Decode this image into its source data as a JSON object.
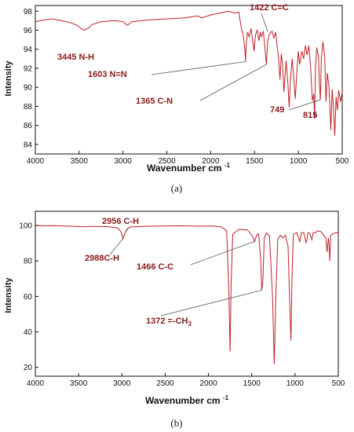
{
  "chart_data": [
    {
      "type": "line",
      "panel": "(a)",
      "xlabel": "Wavenumber cm⁻¹",
      "ylabel": "Intensity",
      "xlim": [
        4000,
        500
      ],
      "ylim": [
        83,
        98.6
      ],
      "xticks": [
        4000,
        3500,
        3000,
        2500,
        2000,
        1500,
        1000,
        500
      ],
      "yticks": [
        84,
        86,
        88,
        90,
        92,
        94,
        96,
        98
      ],
      "color": "#c0202a",
      "points": [
        [
          4000,
          96.9
        ],
        [
          3900,
          97.1
        ],
        [
          3800,
          97.2
        ],
        [
          3700,
          97.0
        ],
        [
          3600,
          96.8
        ],
        [
          3520,
          96.5
        ],
        [
          3480,
          96.2
        ],
        [
          3445,
          96.0
        ],
        [
          3400,
          96.2
        ],
        [
          3350,
          96.6
        ],
        [
          3250,
          96.9
        ],
        [
          3100,
          97.0
        ],
        [
          3000,
          96.9
        ],
        [
          2950,
          96.5
        ],
        [
          2900,
          96.9
        ],
        [
          2700,
          97.1
        ],
        [
          2500,
          97.2
        ],
        [
          2300,
          97.3
        ],
        [
          2150,
          97.5
        ],
        [
          2100,
          97.3
        ],
        [
          2000,
          97.6
        ],
        [
          1900,
          97.8
        ],
        [
          1800,
          98.0
        ],
        [
          1720,
          97.8
        ],
        [
          1680,
          97.9
        ],
        [
          1650,
          96.2
        ],
        [
          1630,
          95.5
        ],
        [
          1610,
          94.0
        ],
        [
          1603,
          92.7
        ],
        [
          1596,
          94.5
        ],
        [
          1580,
          95.8
        ],
        [
          1560,
          95.3
        ],
        [
          1540,
          96.2
        ],
        [
          1520,
          94.8
        ],
        [
          1505,
          93.8
        ],
        [
          1490,
          95.5
        ],
        [
          1470,
          96.0
        ],
        [
          1450,
          94.9
        ],
        [
          1435,
          95.8
        ],
        [
          1422,
          95.3
        ],
        [
          1400,
          95.9
        ],
        [
          1385,
          94.5
        ],
        [
          1365,
          92.4
        ],
        [
          1350,
          94.8
        ],
        [
          1330,
          95.6
        ],
        [
          1300,
          95.9
        ],
        [
          1280,
          95.2
        ],
        [
          1260,
          95.8
        ],
        [
          1240,
          94.2
        ],
        [
          1225,
          93.0
        ],
        [
          1210,
          90.8
        ],
        [
          1195,
          93.5
        ],
        [
          1180,
          92.5
        ],
        [
          1165,
          89.5
        ],
        [
          1150,
          91.5
        ],
        [
          1140,
          92.8
        ],
        [
          1120,
          90.5
        ],
        [
          1105,
          87.9
        ],
        [
          1090,
          91.0
        ],
        [
          1070,
          93.0
        ],
        [
          1050,
          90.5
        ],
        [
          1035,
          88.8
        ],
        [
          1015,
          92.0
        ],
        [
          1000,
          93.8
        ],
        [
          985,
          92.4
        ],
        [
          960,
          93.8
        ],
        [
          940,
          93.0
        ],
        [
          920,
          94.4
        ],
        [
          900,
          93.4
        ],
        [
          880,
          94.4
        ],
        [
          860,
          92.0
        ],
        [
          840,
          88.6
        ],
        [
          825,
          89.3
        ],
        [
          815,
          86.7
        ],
        [
          805,
          92.0
        ],
        [
          790,
          94.2
        ],
        [
          770,
          93.2
        ],
        [
          760,
          90.2
        ],
        [
          749,
          88.7
        ],
        [
          738,
          93.0
        ],
        [
          720,
          94.8
        ],
        [
          700,
          93.2
        ],
        [
          685,
          88.5
        ],
        [
          670,
          91.5
        ],
        [
          650,
          90.0
        ],
        [
          630,
          85.5
        ],
        [
          615,
          89.8
        ],
        [
          600,
          88.0
        ],
        [
          585,
          84.9
        ],
        [
          570,
          89.0
        ],
        [
          555,
          87.6
        ],
        [
          540,
          89.7
        ],
        [
          520,
          88.5
        ],
        [
          500,
          89.5
        ]
      ],
      "annotations": [
        {
          "label": "3445 N-H",
          "x": 3445,
          "y": 96.0
        },
        {
          "label": "1422 C=C",
          "x": 1422,
          "y": 95.3
        },
        {
          "label": "1603 N=N",
          "x": 1603,
          "y": 92.7
        },
        {
          "label": "1365 C-N",
          "x": 1365,
          "y": 92.4
        },
        {
          "label": "749",
          "x": 749,
          "y": 88.7
        },
        {
          "label": "815",
          "x": 815,
          "y": 86.7
        }
      ]
    },
    {
      "type": "line",
      "panel": "(b)",
      "xlabel": "Wavenumber cm⁻¹",
      "ylabel": "Intensity",
      "xlim": [
        4000,
        500
      ],
      "ylim": [
        15,
        108
      ],
      "xticks": [
        4000,
        3500,
        3000,
        2500,
        2000,
        1500,
        1000,
        500
      ],
      "yticks": [
        20,
        40,
        60,
        80,
        100
      ],
      "color": "#c0202a",
      "points": [
        [
          4000,
          99.8
        ],
        [
          3800,
          99.9
        ],
        [
          3600,
          99.6
        ],
        [
          3450,
          99.3
        ],
        [
          3300,
          99.5
        ],
        [
          3150,
          99.3
        ],
        [
          3050,
          98.6
        ],
        [
          3010,
          96.5
        ],
        [
          2988,
          92.5
        ],
        [
          2970,
          95.0
        ],
        [
          2956,
          96.6
        ],
        [
          2940,
          98.0
        ],
        [
          2900,
          99.2
        ],
        [
          2700,
          99.6
        ],
        [
          2500,
          99.7
        ],
        [
          2300,
          99.8
        ],
        [
          2100,
          99.6
        ],
        [
          1950,
          99.7
        ],
        [
          1850,
          99.2
        ],
        [
          1790,
          97.0
        ],
        [
          1765,
          65.0
        ],
        [
          1750,
          29.0
        ],
        [
          1738,
          68.0
        ],
        [
          1720,
          95.0
        ],
        [
          1650,
          97.8
        ],
        [
          1550,
          97.5
        ],
        [
          1490,
          94.0
        ],
        [
          1466,
          91.0
        ],
        [
          1445,
          94.5
        ],
        [
          1420,
          95.2
        ],
        [
          1395,
          80.0
        ],
        [
          1385,
          63.5
        ],
        [
          1372,
          68.0
        ],
        [
          1355,
          93.0
        ],
        [
          1330,
          95.8
        ],
        [
          1295,
          94.0
        ],
        [
          1260,
          60.0
        ],
        [
          1240,
          21.8
        ],
        [
          1222,
          60.0
        ],
        [
          1200,
          92.0
        ],
        [
          1170,
          94.5
        ],
        [
          1140,
          93.0
        ],
        [
          1110,
          94.5
        ],
        [
          1080,
          88.0
        ],
        [
          1060,
          55.0
        ],
        [
          1047,
          35.0
        ],
        [
          1035,
          70.0
        ],
        [
          1020,
          95.0
        ],
        [
          980,
          96.0
        ],
        [
          945,
          91.0
        ],
        [
          925,
          96.0
        ],
        [
          900,
          96.0
        ],
        [
          870,
          90.0
        ],
        [
          850,
          96.0
        ],
        [
          830,
          95.5
        ],
        [
          805,
          92.0
        ],
        [
          790,
          96.0
        ],
        [
          760,
          96.0
        ],
        [
          740,
          97.0
        ],
        [
          700,
          96.5
        ],
        [
          645,
          93.0
        ],
        [
          630,
          85.0
        ],
        [
          615,
          93.0
        ],
        [
          608,
          90.0
        ],
        [
          598,
          80.0
        ],
        [
          588,
          94.5
        ],
        [
          560,
          95.5
        ],
        [
          530,
          95.8
        ],
        [
          500,
          96.0
        ]
      ],
      "annotations": [
        {
          "label": "2956 C-H",
          "x": 2956,
          "y": 96.6
        },
        {
          "label": "2988C-H",
          "x": 2988,
          "y": 92.5
        },
        {
          "label": "1466 C-C",
          "x": 1466,
          "y": 91.0
        },
        {
          "label": "1372 =-CH",
          "sub": "3",
          "x": 1385,
          "y": 63.5
        }
      ]
    }
  ]
}
